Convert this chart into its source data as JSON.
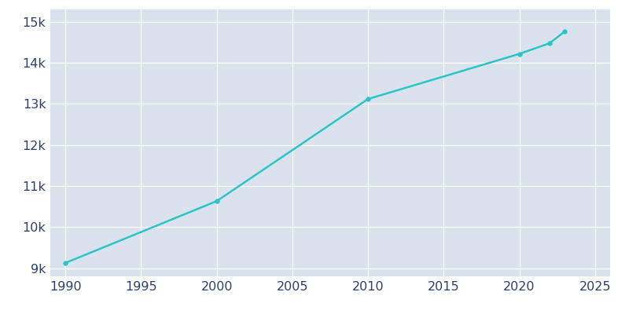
{
  "years": [
    1990,
    2000,
    2010,
    2020,
    2022,
    2023
  ],
  "population": [
    9127,
    10632,
    13118,
    14217,
    14477,
    14762
  ],
  "line_color": "#2BC5C8",
  "marker_color": "#2BC5C8",
  "plot_bg_color": "#DAE3ED",
  "figure_bg_color": "#ffffff",
  "grid_color": "#ffffff",
  "xlim": [
    1989,
    2026
  ],
  "ylim": [
    8800,
    15300
  ],
  "xticks": [
    1990,
    1995,
    2000,
    2005,
    2010,
    2015,
    2020,
    2025
  ],
  "yticks": [
    9000,
    10000,
    11000,
    12000,
    13000,
    14000,
    15000
  ],
  "tick_label_color": "#2E3F6E",
  "tick_fontsize": 11.5
}
